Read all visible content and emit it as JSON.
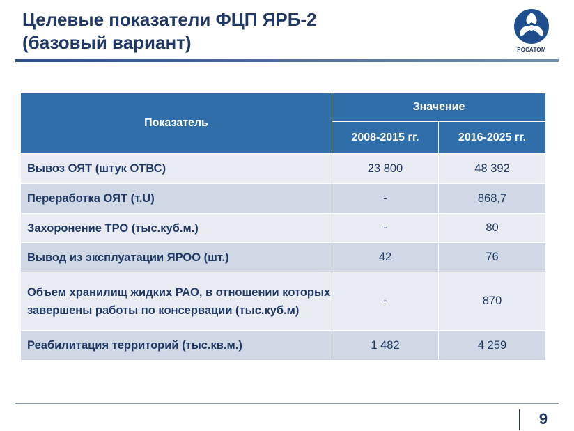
{
  "slide": {
    "title_line1": "Целевые показатели ФЦП ЯРБ-2",
    "title_line2": "(базовый вариант)",
    "logo_text": "РОСАТОМ",
    "page_number": "9",
    "accent_color": "#2f6ea8",
    "text_color": "#1f3864"
  },
  "table": {
    "header_indicator": "Показатель",
    "header_value": "Значение",
    "period1": "2008-2015 гг.",
    "period2": "2016-2025 гг.",
    "rows": [
      {
        "label": "Вывоз ОЯТ (штук ОТВС)",
        "v1": "23 800",
        "v2": "48 392"
      },
      {
        "label": "Переработка ОЯТ (т.U)",
        "v1": "-",
        "v2": "868,7"
      },
      {
        "label": "Захоронение ТРО (тыс.куб.м.)",
        "v1": "-",
        "v2": "80"
      },
      {
        "label": "Вывод из эксплуатации ЯРОО (шт.)",
        "v1": "42",
        "v2": "76"
      },
      {
        "label": "Объем хранилищ жидких РАО, в отношении которых завершены работы по консервации (тыс.куб.м)",
        "v1": "-",
        "v2": "870"
      },
      {
        "label": "Реабилитация территорий  (тыс.кв.м.)",
        "v1": "1 482",
        "v2": "4 259"
      }
    ]
  }
}
